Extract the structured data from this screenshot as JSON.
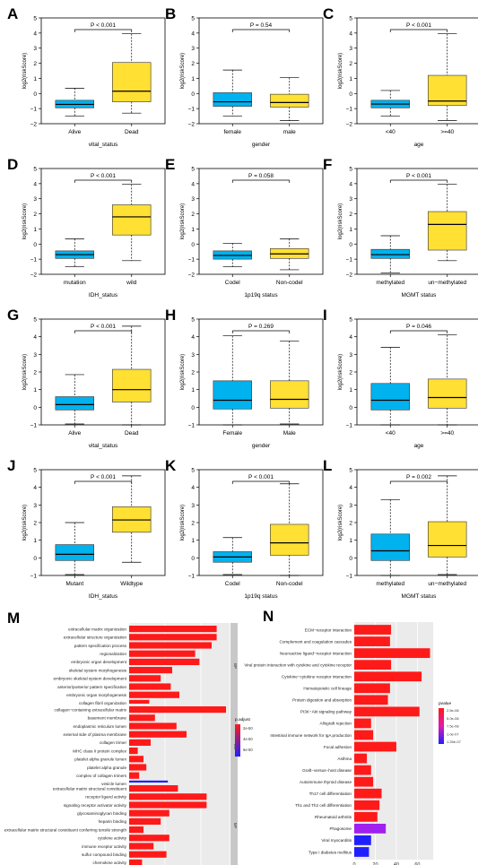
{
  "colors": {
    "blue": "#00b2ee",
    "yellow": "#ffe033",
    "red": "#ff1a1a",
    "purple": "#a020f0",
    "deepblue": "#2020ff"
  },
  "boxplots": [
    {
      "letter": "A",
      "pvalue": "P < 0.001",
      "ylabel": "log2(riskScore)",
      "xlabel": "vital_status",
      "ylim": [
        -2,
        5
      ],
      "ticks": [
        -2,
        -1,
        0,
        1,
        2,
        3,
        4,
        5
      ],
      "groups": [
        {
          "name": "Alive",
          "min": -1.5,
          "q1": -0.95,
          "median": -0.72,
          "q3": -0.45,
          "max": 0.35
        },
        {
          "name": "Dead",
          "min": -1.3,
          "q1": -0.55,
          "median": 0.15,
          "q3": 2.05,
          "max": 3.95
        }
      ]
    },
    {
      "letter": "B",
      "pvalue": "P = 0.54",
      "ylabel": "log2(riskScore)",
      "xlabel": "gender",
      "ylim": [
        -2,
        5
      ],
      "ticks": [
        -2,
        -1,
        0,
        1,
        2,
        3,
        4,
        5
      ],
      "groups": [
        {
          "name": "female",
          "min": -1.5,
          "q1": -0.85,
          "median": -0.55,
          "q3": 0.05,
          "max": 1.55
        },
        {
          "name": "male",
          "min": -1.8,
          "q1": -0.9,
          "median": -0.6,
          "q3": -0.05,
          "max": 1.05
        }
      ]
    },
    {
      "letter": "C",
      "pvalue": "P < 0.001",
      "ylabel": "log2(riskScore)",
      "xlabel": "age",
      "ylim": [
        -2,
        5
      ],
      "ticks": [
        -2,
        -1,
        0,
        1,
        2,
        3,
        4,
        5
      ],
      "groups": [
        {
          "name": "<40",
          "min": -1.5,
          "q1": -0.95,
          "median": -0.7,
          "q3": -0.45,
          "max": 0.2
        },
        {
          "name": ">=40",
          "min": -1.8,
          "q1": -0.8,
          "median": -0.5,
          "q3": 1.2,
          "max": 3.95
        }
      ]
    },
    {
      "letter": "D",
      "pvalue": "P < 0.001",
      "ylabel": "log2(riskScore)",
      "xlabel": "IDH_status",
      "ylim": [
        -2,
        5
      ],
      "ticks": [
        -2,
        -1,
        0,
        1,
        2,
        3,
        4,
        5
      ],
      "groups": [
        {
          "name": "mutation",
          "min": -1.5,
          "q1": -0.95,
          "median": -0.7,
          "q3": -0.45,
          "max": 0.35
        },
        {
          "name": "wild",
          "min": -1.1,
          "q1": 0.6,
          "median": 1.8,
          "q3": 2.6,
          "max": 3.95
        }
      ]
    },
    {
      "letter": "E",
      "pvalue": "P = 0.058",
      "ylabel": "log2(riskScore)",
      "xlabel": "1p19q status",
      "ylim": [
        -2,
        5
      ],
      "ticks": [
        -2,
        -1,
        0,
        1,
        2,
        3,
        4,
        5
      ],
      "groups": [
        {
          "name": "Codel",
          "min": -1.5,
          "q1": -1.0,
          "median": -0.75,
          "q3": -0.45,
          "max": 0.05
        },
        {
          "name": "Non-codel",
          "min": -1.7,
          "q1": -0.95,
          "median": -0.65,
          "q3": -0.3,
          "max": 0.35
        }
      ]
    },
    {
      "letter": "F",
      "pvalue": "P < 0.001",
      "ylabel": "log2(riskScore)",
      "xlabel": "MGMT status",
      "ylim": [
        -2,
        5
      ],
      "ticks": [
        -2,
        -1,
        0,
        1,
        2,
        3,
        4,
        5
      ],
      "groups": [
        {
          "name": "methylated",
          "min": -1.9,
          "q1": -0.95,
          "median": -0.7,
          "q3": -0.35,
          "max": 0.55
        },
        {
          "name": "un−methylated",
          "min": -1.1,
          "q1": -0.4,
          "median": 1.3,
          "q3": 2.15,
          "max": 3.95
        }
      ]
    },
    {
      "letter": "G",
      "pvalue": "P < 0.001",
      "ylabel": "log2(riskScore)",
      "xlabel": "vital_status",
      "ylim": [
        -1,
        5
      ],
      "ticks": [
        -1,
        0,
        1,
        2,
        3,
        4,
        5
      ],
      "groups": [
        {
          "name": "Alive",
          "min": -0.95,
          "q1": -0.15,
          "median": 0.15,
          "q3": 0.6,
          "max": 1.85
        },
        {
          "name": "Dead",
          "min": -1.0,
          "q1": 0.3,
          "median": 1.0,
          "q3": 2.15,
          "max": 4.6
        }
      ]
    },
    {
      "letter": "H",
      "pvalue": "P = 0.269",
      "ylabel": "log2(riskScore)",
      "xlabel": "gender",
      "ylim": [
        -1,
        5
      ],
      "ticks": [
        -1,
        0,
        1,
        2,
        3,
        4,
        5
      ],
      "groups": [
        {
          "name": "Female",
          "min": -1.0,
          "q1": -0.1,
          "median": 0.4,
          "q3": 1.5,
          "max": 4.05
        },
        {
          "name": "Male",
          "min": -0.95,
          "q1": -0.05,
          "median": 0.45,
          "q3": 1.5,
          "max": 3.75
        }
      ]
    },
    {
      "letter": "I",
      "pvalue": "P = 0.046",
      "ylabel": "log2(riskScore)",
      "xlabel": "age",
      "ylim": [
        -1,
        5
      ],
      "ticks": [
        -1,
        0,
        1,
        2,
        3,
        4,
        5
      ],
      "groups": [
        {
          "name": "<40",
          "min": -1.0,
          "q1": -0.15,
          "median": 0.4,
          "q3": 1.35,
          "max": 3.4
        },
        {
          "name": ">=40",
          "min": -1.0,
          "q1": -0.05,
          "median": 0.55,
          "q3": 1.6,
          "max": 4.1
        }
      ]
    },
    {
      "letter": "J",
      "pvalue": "P < 0.001",
      "ylabel": "log2(riskScore)",
      "xlabel": "IDH_status",
      "ylim": [
        -1,
        5
      ],
      "ticks": [
        -1,
        0,
        1,
        2,
        3,
        4,
        5
      ],
      "groups": [
        {
          "name": "Mutant",
          "min": -0.95,
          "q1": -0.15,
          "median": 0.2,
          "q3": 0.75,
          "max": 2.0
        },
        {
          "name": "Wildtype",
          "min": -0.25,
          "q1": 1.45,
          "median": 2.15,
          "q3": 2.9,
          "max": 4.65
        }
      ]
    },
    {
      "letter": "K",
      "pvalue": "P < 0.001",
      "ylabel": "log2(riskScore)",
      "xlabel": "1p19q status",
      "ylim": [
        -1,
        5
      ],
      "ticks": [
        -1,
        0,
        1,
        2,
        3,
        4,
        5
      ],
      "groups": [
        {
          "name": "Codel",
          "min": -0.95,
          "q1": -0.25,
          "median": 0.05,
          "q3": 0.35,
          "max": 1.15
        },
        {
          "name": "Non-codel",
          "min": -1.0,
          "q1": 0.15,
          "median": 0.85,
          "q3": 1.9,
          "max": 4.2
        }
      ]
    },
    {
      "letter": "L",
      "pvalue": "P = 0.002",
      "ylabel": "log2(riskScore)",
      "xlabel": "MGMT status",
      "ylim": [
        -1,
        5
      ],
      "ticks": [
        -1,
        0,
        1,
        2,
        3,
        4,
        5
      ],
      "groups": [
        {
          "name": "methylated",
          "min": -1.0,
          "q1": -0.15,
          "median": 0.4,
          "q3": 1.35,
          "max": 3.3
        },
        {
          "name": "un−methylated",
          "min": -0.95,
          "q1": 0.05,
          "median": 0.7,
          "q3": 2.05,
          "max": 4.65
        }
      ]
    }
  ],
  "chart_data": [
    {
      "type": "bar",
      "panel": "M",
      "orientation": "horizontal",
      "xlim": [
        0,
        140
      ],
      "ticks": [
        0,
        50,
        100
      ],
      "legend": {
        "title": "p.adjust",
        "labels": [
          "2e-50",
          "4e-50",
          "6e-50"
        ],
        "placement": "right"
      },
      "groups": [
        {
          "name": "BP",
          "items": [
            {
              "label": "extracellular matrix organization",
              "value": 122,
              "color": "#ff1a1a"
            },
            {
              "label": "extracellular structure organization",
              "value": 122,
              "color": "#ff1a1a"
            },
            {
              "label": "pattern specification process",
              "value": 115,
              "color": "#ff1a1a"
            },
            {
              "label": "regionalization",
              "value": 92,
              "color": "#ff1a1a"
            },
            {
              "label": "embryonic organ development",
              "value": 98,
              "color": "#ff1a1a"
            },
            {
              "label": "skeletal system morphogenesis",
              "value": 60,
              "color": "#ff1a1a"
            },
            {
              "label": "embryonic skeletal system development",
              "value": 44,
              "color": "#ff1a1a"
            },
            {
              "label": "anterior/posterior pattern specification",
              "value": 58,
              "color": "#ff1a1a"
            },
            {
              "label": "embryonic organ morphogenesis",
              "value": 70,
              "color": "#ff1a1a"
            },
            {
              "label": "collagen fibril organization",
              "value": 28,
              "color": "#ff1a1a"
            }
          ]
        },
        {
          "name": "CC",
          "items": [
            {
              "label": "collagen−containing extracellular matrix",
              "value": 135,
              "color": "#ff1a1a"
            },
            {
              "label": "basement membrane",
              "value": 36,
              "color": "#ff1a1a"
            },
            {
              "label": "endoplasmic reticulum lumen",
              "value": 66,
              "color": "#ff1a1a"
            },
            {
              "label": "external side of plasma membrane",
              "value": 80,
              "color": "#ff1a1a"
            },
            {
              "label": "collagen trimer",
              "value": 30,
              "color": "#ff1a1a"
            },
            {
              "label": "MHC class II protein complex",
              "value": 12,
              "color": "#ff1a1a"
            },
            {
              "label": "platelet alpha granule lumen",
              "value": 20,
              "color": "#ff1a1a"
            },
            {
              "label": "platelet alpha granule",
              "value": 24,
              "color": "#ff1a1a"
            },
            {
              "label": "complex of collagen trimers",
              "value": 14,
              "color": "#ff1a1a"
            },
            {
              "label": "vesicle lumen",
              "value": 54,
              "color": "#2020ff"
            }
          ]
        },
        {
          "name": "MF",
          "items": [
            {
              "label": "extracellular matrix structural constituent",
              "value": 68,
              "color": "#ff1a1a"
            },
            {
              "label": "receptor ligand activity",
              "value": 108,
              "color": "#ff1a1a"
            },
            {
              "label": "signaling receptor activator activity",
              "value": 108,
              "color": "#ff1a1a"
            },
            {
              "label": "glycosaminoglycan binding",
              "value": 56,
              "color": "#ff1a1a"
            },
            {
              "label": "heparin binding",
              "value": 44,
              "color": "#ff1a1a"
            },
            {
              "label": "extracellular matrix structural constituent conferring tensile strength",
              "value": 20,
              "color": "#ff1a1a"
            },
            {
              "label": "cytokine activity",
              "value": 56,
              "color": "#ff1a1a"
            },
            {
              "label": "immune receptor activity",
              "value": 34,
              "color": "#ff1a1a"
            },
            {
              "label": "sulfur compound binding",
              "value": 52,
              "color": "#ff1a1a"
            },
            {
              "label": "chemokine activity",
              "value": 18,
              "color": "#ff1a1a"
            }
          ]
        }
      ]
    },
    {
      "type": "bar",
      "panel": "N",
      "orientation": "horizontal",
      "xlim": [
        0,
        75
      ],
      "ticks": [
        0,
        20,
        40,
        60
      ],
      "legend": {
        "title": "pvalue",
        "labels": [
          "2.5e-08",
          "5.0e-08",
          "7.5e-08",
          "1.0e-07",
          "1.25e-07"
        ],
        "placement": "right"
      },
      "items": [
        {
          "label": "ECM−receptor interaction",
          "value": 35,
          "color": "#ff1a1a"
        },
        {
          "label": "Complement and coagulation cascades",
          "value": 34,
          "color": "#ff1a1a"
        },
        {
          "label": "Neuroactive ligand−receptor interaction",
          "value": 72,
          "color": "#ff1a1a"
        },
        {
          "label": "Viral protein interaction with cytokine and cytokine receptor",
          "value": 35,
          "color": "#ff1a1a"
        },
        {
          "label": "Cytokine−cytokine receptor interaction",
          "value": 64,
          "color": "#ff1a1a"
        },
        {
          "label": "Hematopoietic cell lineage",
          "value": 34,
          "color": "#ff1a1a"
        },
        {
          "label": "Protein digestion and absorption",
          "value": 32,
          "color": "#ff1a1a"
        },
        {
          "label": "PI3K−Akt signaling pathway",
          "value": 62,
          "color": "#ff1a1a"
        },
        {
          "label": "Allograft rejection",
          "value": 16,
          "color": "#ff1a1a"
        },
        {
          "label": "Intestinal immune network for IgA production",
          "value": 18,
          "color": "#ff1a1a"
        },
        {
          "label": "Focal adhesion",
          "value": 40,
          "color": "#ff1a1a"
        },
        {
          "label": "Asthma",
          "value": 12,
          "color": "#ff1a1a"
        },
        {
          "label": "Graft−versus−host disease",
          "value": 16,
          "color": "#ff1a1a"
        },
        {
          "label": "Autoimmune thyroid disease",
          "value": 18,
          "color": "#ff1a1a"
        },
        {
          "label": "Th17 cell differentiation",
          "value": 26,
          "color": "#ff1a1a"
        },
        {
          "label": "Th1 and Th2 cell differentiation",
          "value": 24,
          "color": "#ff1a1a"
        },
        {
          "label": "Rheumatoid arthritis",
          "value": 22,
          "color": "#ff1a1a"
        },
        {
          "label": "Phagosome",
          "value": 30,
          "color": "#a020f0"
        },
        {
          "label": "Viral myocarditis",
          "value": 16,
          "color": "#2020ff"
        },
        {
          "label": "Type I diabetes mellitus",
          "value": 14,
          "color": "#2020ff"
        }
      ]
    }
  ]
}
